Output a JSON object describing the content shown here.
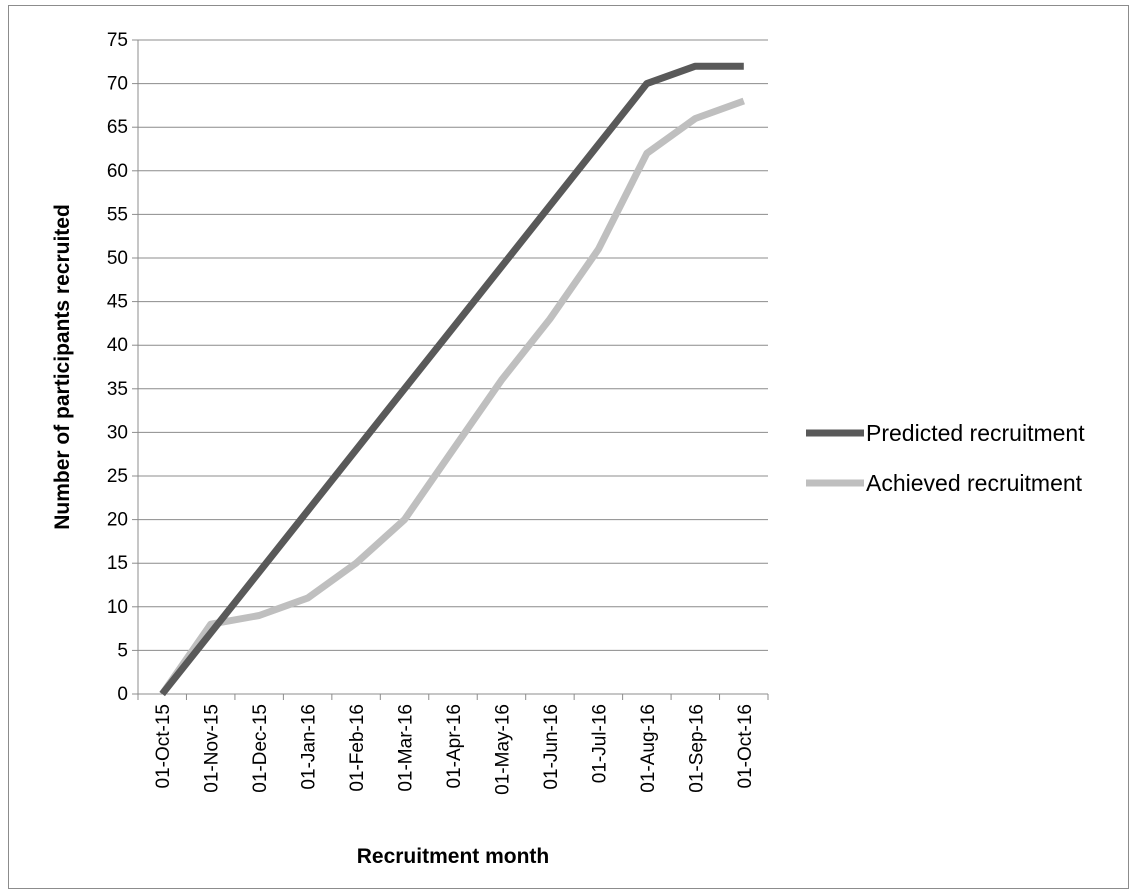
{
  "chart_data": {
    "type": "line",
    "xlabel": "Recruitment month",
    "ylabel": "Number of participants recruited",
    "ylim": [
      0,
      75
    ],
    "y_step": 5,
    "grid": "horizontal",
    "legend_position": "right",
    "categories": [
      "01-Oct-15",
      "01-Nov-15",
      "01-Dec-15",
      "01-Jan-16",
      "01-Feb-16",
      "01-Mar-16",
      "01-Apr-16",
      "01-May-16",
      "01-Jun-16",
      "01-Jul-16",
      "01-Aug-16",
      "01-Sep-16",
      "01-Oct-16"
    ],
    "series": [
      {
        "name": "Predicted recruitment",
        "color": "#595959",
        "values": [
          0,
          7,
          14,
          21,
          28,
          35,
          42,
          49,
          56,
          63,
          70,
          72,
          72
        ]
      },
      {
        "name": "Achieved recruitment",
        "color": "#bfbfbf",
        "values": [
          0,
          8,
          9,
          11,
          15,
          20,
          28,
          36,
          43,
          51,
          62,
          66,
          68
        ]
      }
    ]
  }
}
